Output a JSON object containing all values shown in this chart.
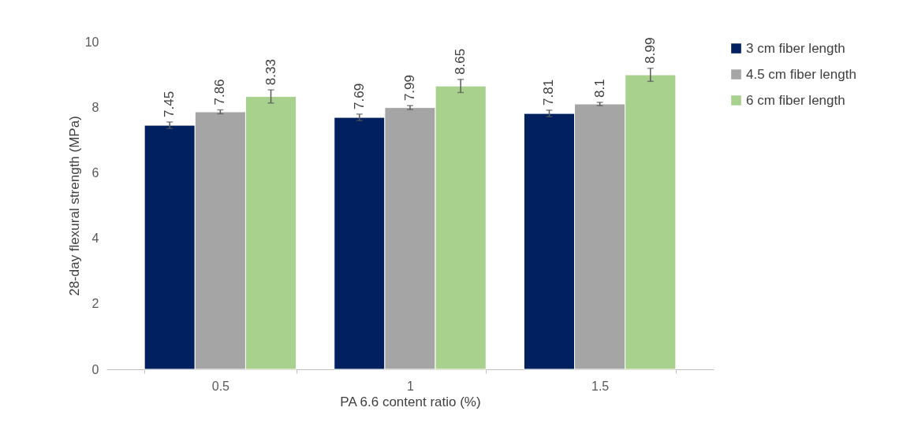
{
  "chart_data": {
    "type": "bar",
    "xlabel": "PA 6.6 content ratio (%)",
    "ylabel": "28-day flexural strength (MPa)",
    "categories": [
      "0.5",
      "1",
      "1.5"
    ],
    "series": [
      {
        "name": "3 cm fiber length",
        "color": "#002060",
        "values": [
          7.45,
          7.69,
          7.81
        ],
        "errors": [
          0.1,
          0.1,
          0.1
        ]
      },
      {
        "name": "4.5 cm fiber length",
        "color": "#a5a5a5",
        "values": [
          7.86,
          7.99,
          8.1
        ],
        "errors": [
          0.06,
          0.06,
          0.05
        ]
      },
      {
        "name": "6 cm fiber length",
        "color": "#a9d18e",
        "values": [
          8.33,
          8.65,
          8.99
        ],
        "errors": [
          0.2,
          0.2,
          0.2
        ]
      }
    ],
    "ylim": [
      0,
      10
    ],
    "yticks": [
      0,
      2,
      4,
      6,
      8,
      10
    ],
    "grid": false,
    "legend": "right",
    "data_labels": true
  }
}
